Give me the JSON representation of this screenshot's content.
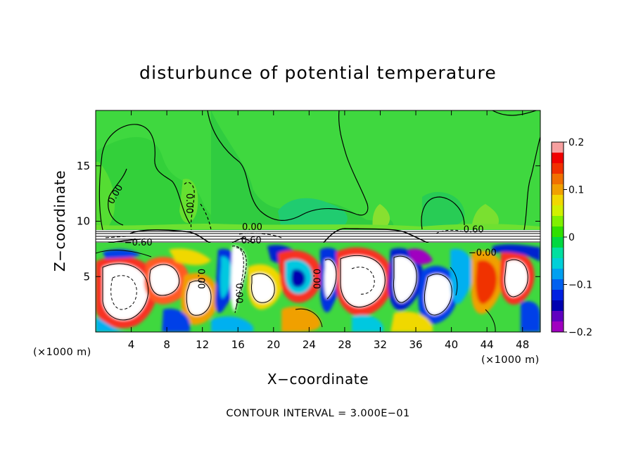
{
  "chart_data": {
    "type": "heatmap",
    "title": "disturbunce of potential temperature",
    "xlabel": "X−coordinate",
    "ylabel": "Z−coordinate",
    "x_unit_left": "(×1000 m)",
    "x_unit_right": "(×1000 m)",
    "footer": "CONTOUR INTERVAL = 3.000E−01",
    "xlim": [
      0,
      50
    ],
    "ylim": [
      0,
      20
    ],
    "x_ticks": [
      {
        "value": 4,
        "label": "4"
      },
      {
        "value": 8,
        "label": "8"
      },
      {
        "value": 12,
        "label": "12"
      },
      {
        "value": 16,
        "label": "16"
      },
      {
        "value": 20,
        "label": "20"
      },
      {
        "value": 24,
        "label": "24"
      },
      {
        "value": 28,
        "label": "28"
      },
      {
        "value": 32,
        "label": "32"
      },
      {
        "value": 36,
        "label": "36"
      },
      {
        "value": 40,
        "label": "40"
      },
      {
        "value": 44,
        "label": "44"
      },
      {
        "value": 48,
        "label": "48"
      }
    ],
    "y_ticks": [
      {
        "value": 5,
        "label": "5"
      },
      {
        "value": 10,
        "label": "10"
      },
      {
        "value": 15,
        "label": "15"
      }
    ],
    "colorbar": {
      "min": -0.2,
      "max": 0.2,
      "ticks": [
        {
          "value": 0.2,
          "label": "0.2"
        },
        {
          "value": 0.1,
          "label": "0.1"
        },
        {
          "value": 0,
          "label": "0"
        },
        {
          "value": -0.1,
          "label": "−0.1"
        },
        {
          "value": -0.2,
          "label": "−0.2"
        }
      ],
      "colors": [
        "#f7a0a0",
        "#f00000",
        "#f03000",
        "#f07000",
        "#f0a000",
        "#f0d800",
        "#d0f000",
        "#80f000",
        "#30e000",
        "#00d840",
        "#00e0a0",
        "#00d0d8",
        "#00a0f0",
        "#0060f0",
        "#0020e0",
        "#0000b0",
        "#6000c0",
        "#a000c0"
      ]
    },
    "contour_labels": [
      {
        "text": "0.00",
        "x": 2.5,
        "z": 12.3,
        "rotate": -60
      },
      {
        "text": "0.00",
        "x": 10.2,
        "z": 11.6,
        "rotate": 90
      },
      {
        "text": "0.00",
        "x": 17.6,
        "z": 9.2,
        "rotate": 0
      },
      {
        "text": "0.60",
        "x": 17.5,
        "z": 8.0,
        "rotate": 0
      },
      {
        "text": "−0.60",
        "x": 4.8,
        "z": 7.8,
        "rotate": 0
      },
      {
        "text": "0.60",
        "x": 42.5,
        "z": 9.0,
        "rotate": 0
      },
      {
        "text": "−0.00",
        "x": 43.5,
        "z": 6.9,
        "rotate": 0
      },
      {
        "text": "0.00",
        "x": 11.5,
        "z": 4.8,
        "rotate": 90
      },
      {
        "text": "0.00",
        "x": 15.8,
        "z": 3.5,
        "rotate": 90
      },
      {
        "text": "0.00",
        "x": 24.5,
        "z": 4.8,
        "rotate": 90
      }
    ]
  }
}
